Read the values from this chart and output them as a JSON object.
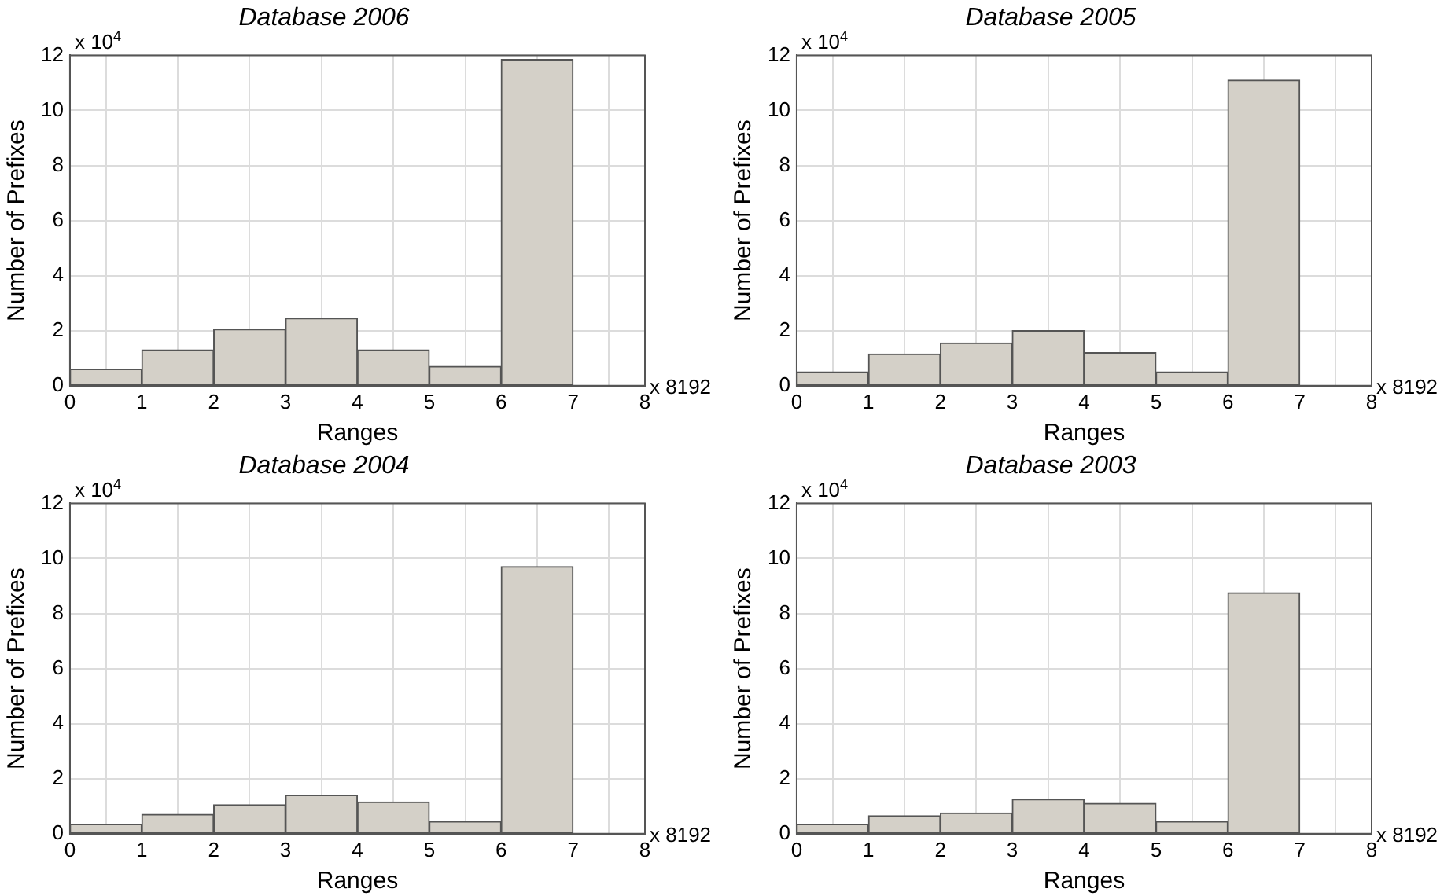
{
  "chart_data": [
    {
      "type": "histogram",
      "title": "Database 2006",
      "xlabel": "Ranges",
      "ylabel": "Number of Prefixes",
      "bins": [
        0,
        1,
        2,
        3,
        4,
        5,
        6,
        7,
        8
      ],
      "values": [
        0.6,
        1.3,
        2.05,
        2.45,
        1.3,
        0.7,
        11.85,
        0
      ],
      "color": "#d4d0c8",
      "xlim": [
        0,
        8
      ],
      "xticks": [
        0,
        1,
        2,
        3,
        4,
        5,
        6,
        7,
        8
      ],
      "ylim": [
        0,
        12
      ],
      "yticks": [
        0,
        2,
        4,
        6,
        8,
        10,
        12
      ],
      "grid": true,
      "annotations": [
        "x 10$^{4}$",
        "x 8192"
      ]
    },
    {
      "type": "histogram",
      "title": "Database 2005",
      "xlabel": "Ranges",
      "ylabel": "Number of Prefixes",
      "bins": [
        0,
        1,
        2,
        3,
        4,
        5,
        6,
        7,
        8
      ],
      "values": [
        0.5,
        1.15,
        1.55,
        2.0,
        1.2,
        0.5,
        11.1,
        0
      ],
      "color": "#d4d0c8",
      "xlim": [
        0,
        8
      ],
      "xticks": [
        0,
        1,
        2,
        3,
        4,
        5,
        6,
        7,
        8
      ],
      "ylim": [
        0,
        12
      ],
      "yticks": [
        0,
        2,
        4,
        6,
        8,
        10,
        12
      ],
      "grid": true,
      "annotations": [
        "x 10$^{4}$",
        "x 8192"
      ]
    },
    {
      "type": "histogram",
      "title": "Database 2004",
      "xlabel": "Ranges",
      "ylabel": "Number of Prefixes",
      "bins": [
        0,
        1,
        2,
        3,
        4,
        5,
        6,
        7,
        8
      ],
      "values": [
        0.35,
        0.7,
        1.05,
        1.4,
        1.15,
        0.45,
        9.7,
        0
      ],
      "color": "#d4d0c8",
      "xlim": [
        0,
        8
      ],
      "xticks": [
        0,
        1,
        2,
        3,
        4,
        5,
        6,
        7,
        8
      ],
      "ylim": [
        0,
        12
      ],
      "yticks": [
        0,
        2,
        4,
        6,
        8,
        10,
        12
      ],
      "grid": true,
      "annotations": [
        "x 10$^{4}$",
        "x 8192"
      ]
    },
    {
      "type": "histogram",
      "title": "Database 2003",
      "xlabel": "Ranges",
      "ylabel": "Number of Prefixes",
      "bins": [
        0,
        1,
        2,
        3,
        4,
        5,
        6,
        7,
        8
      ],
      "values": [
        0.35,
        0.65,
        0.75,
        1.25,
        1.1,
        0.45,
        8.75,
        0
      ],
      "color": "#d4d0c8",
      "xlim": [
        0,
        8
      ],
      "xticks": [
        0,
        1,
        2,
        3,
        4,
        5,
        6,
        7,
        8
      ],
      "ylim": [
        0,
        12
      ],
      "yticks": [
        0,
        2,
        4,
        6,
        8,
        10,
        12
      ],
      "grid": true,
      "annotations": [
        "x 10$^{4}$",
        "x 8192"
      ]
    }
  ]
}
